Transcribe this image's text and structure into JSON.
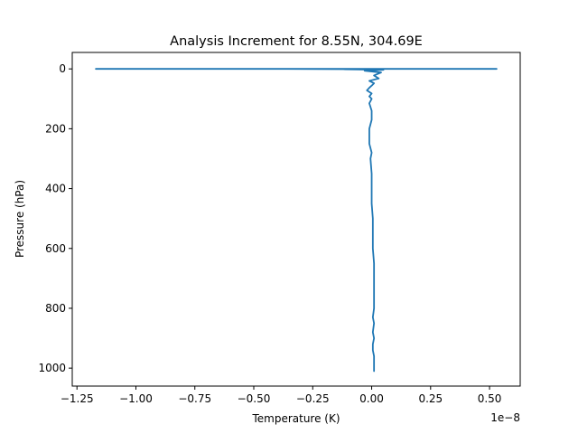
{
  "chart_data": {
    "type": "line",
    "title": "Analysis Increment for 8.55N, 304.69E",
    "xlabel": "Temperature (K)",
    "ylabel": "Pressure (hPa)",
    "x_offset_text": "1e−8",
    "xlim": [
      -1.27,
      0.63
    ],
    "ylim": [
      1060,
      -55
    ],
    "y_inverted": true,
    "grid": false,
    "legend": "none",
    "xticks": [
      -1.25,
      -1.0,
      -0.75,
      -0.5,
      -0.25,
      0.0,
      0.25,
      0.5
    ],
    "xtick_labels": [
      "−1.25",
      "−1.00",
      "−0.75",
      "−0.50",
      "−0.25",
      "0.00",
      "0.25",
      "0.50"
    ],
    "yticks": [
      0,
      200,
      400,
      600,
      800,
      1000
    ],
    "ytick_labels": [
      "0",
      "200",
      "400",
      "600",
      "800",
      "1000"
    ],
    "series": [
      {
        "color": "#1f77b4",
        "x": [
          0.53,
          -1.17,
          -0.36,
          -0.12,
          0.05,
          -0.03,
          0.04,
          0.01,
          0.03,
          -0.01,
          0.01,
          0.0,
          -0.01,
          -0.02,
          0.0,
          -0.01,
          0.0,
          -0.01,
          0.0,
          0.0,
          -0.01,
          -0.01,
          0.0,
          -0.005,
          0.0,
          0.0,
          0.0,
          0.005,
          0.005,
          0.005,
          0.01,
          0.01,
          0.01,
          0.01,
          0.005,
          0.01,
          0.005,
          0.01,
          0.005,
          0.005,
          0.01,
          0.01,
          0.01
        ],
        "y": [
          0,
          0,
          0,
          1,
          3,
          6,
          12,
          22,
          32,
          40,
          48,
          56,
          63,
          72,
          82,
          92,
          100,
          115,
          140,
          170,
          200,
          250,
          280,
          300,
          350,
          400,
          450,
          500,
          550,
          600,
          650,
          700,
          750,
          800,
          830,
          850,
          880,
          900,
          920,
          940,
          960,
          980,
          1010
        ]
      }
    ]
  }
}
